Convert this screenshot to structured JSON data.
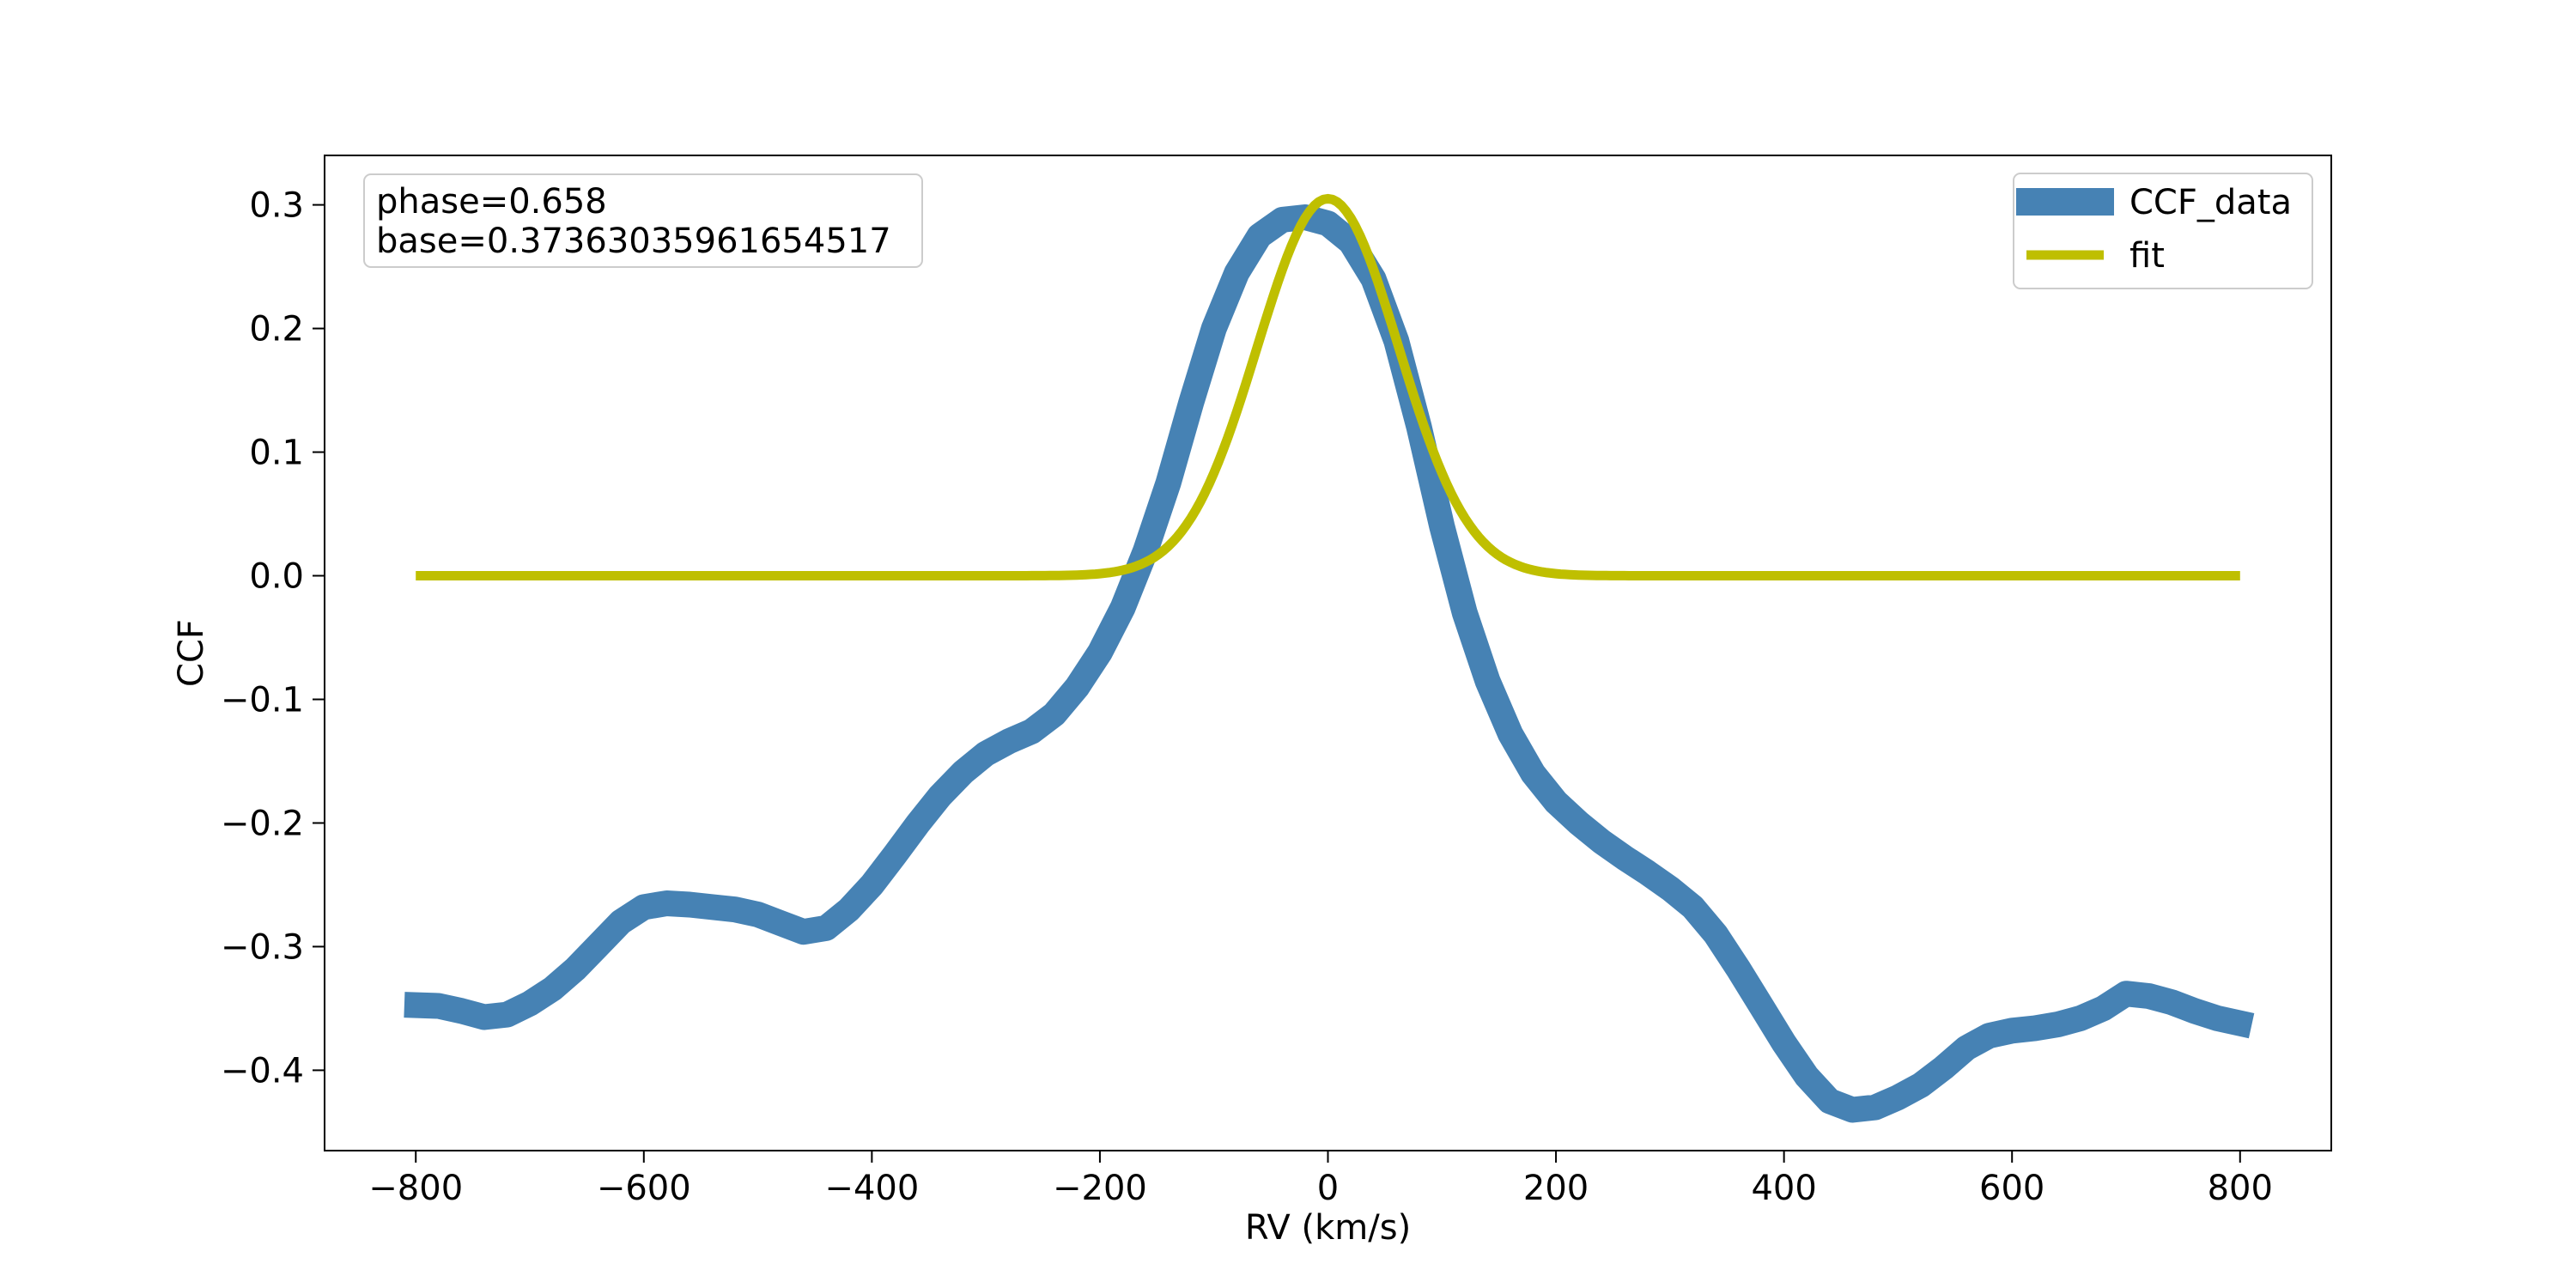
{
  "chart_data": {
    "type": "line",
    "title": "",
    "xlabel": "RV (km/s)",
    "ylabel": "CCF",
    "xlim": [
      -880,
      880
    ],
    "ylim": [
      -0.465,
      0.34
    ],
    "xticks": [
      -800,
      -600,
      -400,
      -200,
      0,
      200,
      400,
      600,
      800
    ],
    "xtick_labels": [
      "−800",
      "−600",
      "−400",
      "−200",
      "0",
      "200",
      "400",
      "600",
      "800"
    ],
    "yticks": [
      0.3,
      0.2,
      0.1,
      0.0,
      -0.1,
      -0.2,
      -0.3,
      -0.4
    ],
    "ytick_labels": [
      "0.3",
      "0.2",
      "0.1",
      "0.0",
      "−0.1",
      "−0.2",
      "−0.3",
      "−0.4"
    ],
    "grid": false,
    "legend_position": "top-right",
    "annotation": [
      "phase=0.658",
      "base=0.37363035961654517"
    ],
    "series": [
      {
        "name": "CCF_data",
        "color": "#4682b4",
        "x": [
          -810,
          -780,
          -760,
          -740,
          -720,
          -700,
          -680,
          -660,
          -640,
          -620,
          -600,
          -580,
          -560,
          -540,
          -520,
          -500,
          -480,
          -460,
          -440,
          -420,
          -400,
          -380,
          -360,
          -340,
          -320,
          -300,
          -280,
          -260,
          -240,
          -220,
          -200,
          -180,
          -160,
          -140,
          -120,
          -100,
          -80,
          -60,
          -40,
          -20,
          0,
          20,
          40,
          60,
          80,
          100,
          120,
          140,
          160,
          180,
          200,
          220,
          240,
          260,
          280,
          300,
          320,
          340,
          360,
          380,
          400,
          420,
          440,
          460,
          480,
          500,
          520,
          540,
          560,
          580,
          600,
          620,
          640,
          660,
          680,
          700,
          720,
          740,
          760,
          780,
          810
        ],
        "y": [
          -0.347,
          -0.348,
          -0.352,
          -0.357,
          -0.355,
          -0.346,
          -0.334,
          -0.318,
          -0.299,
          -0.28,
          -0.268,
          -0.265,
          -0.266,
          -0.268,
          -0.27,
          -0.274,
          -0.281,
          -0.288,
          -0.285,
          -0.27,
          -0.25,
          -0.226,
          -0.201,
          -0.178,
          -0.159,
          -0.144,
          -0.134,
          -0.126,
          -0.112,
          -0.09,
          -0.062,
          -0.026,
          0.02,
          0.075,
          0.14,
          0.2,
          0.245,
          0.275,
          0.288,
          0.29,
          0.285,
          0.27,
          0.24,
          0.19,
          0.12,
          0.04,
          -0.03,
          -0.085,
          -0.128,
          -0.16,
          -0.183,
          -0.2,
          -0.215,
          -0.228,
          -0.24,
          -0.253,
          -0.268,
          -0.29,
          -0.318,
          -0.348,
          -0.378,
          -0.405,
          -0.425,
          -0.432,
          -0.43,
          -0.422,
          -0.412,
          -0.398,
          -0.382,
          -0.372,
          -0.368,
          -0.366,
          -0.363,
          -0.358,
          -0.35,
          -0.338,
          -0.34,
          -0.345,
          -0.352,
          -0.358,
          -0.364
        ]
      },
      {
        "name": "fit",
        "color": "#bfbf00",
        "function": "gaussian",
        "amplitude": 0.305,
        "center": 0,
        "sigma": 62,
        "x_range": [
          -800,
          800
        ]
      }
    ]
  }
}
